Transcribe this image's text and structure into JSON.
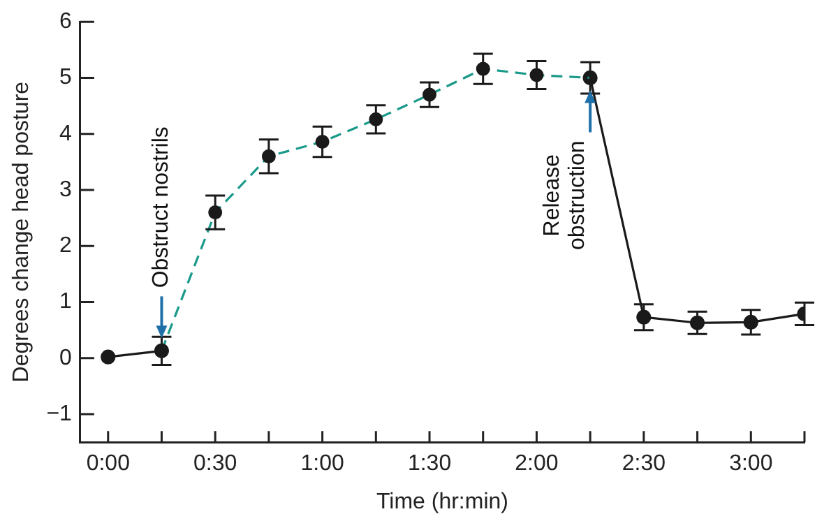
{
  "chart_data": {
    "type": "line",
    "xlabel": "Time (hr:min)",
    "ylabel": "Degrees change head posture",
    "xlim": [
      -0.13,
      3.25
    ],
    "xticks": [
      {
        "value": 0,
        "label": "0:00"
      },
      {
        "value": 0.25,
        "label": null
      },
      {
        "value": 0.5,
        "label": "0:30"
      },
      {
        "value": 0.75,
        "label": null
      },
      {
        "value": 1,
        "label": "1:00"
      },
      {
        "value": 1.25,
        "label": null
      },
      {
        "value": 1.5,
        "label": "1:30"
      },
      {
        "value": 1.75,
        "label": null
      },
      {
        "value": 2,
        "label": "2:00"
      },
      {
        "value": 2.25,
        "label": null
      },
      {
        "value": 2.5,
        "label": "2:30"
      },
      {
        "value": 2.75,
        "label": null
      },
      {
        "value": 3,
        "label": "3:00"
      },
      {
        "value": 3.25,
        "label": null
      }
    ],
    "ylim": [
      -1.5,
      6
    ],
    "yticks": [
      {
        "value": -1,
        "label": "−1"
      },
      0,
      1,
      2,
      3,
      4,
      5,
      6
    ],
    "grid": false,
    "legend": false,
    "series": [
      {
        "type": "scatter",
        "color": "#1a1a1a",
        "marker": "circle",
        "x": [
          0.5,
          0.75,
          1,
          1.25,
          1.5,
          1.75,
          2
        ],
        "values": [
          2.6,
          3.6,
          3.86,
          4.26,
          4.7,
          5.16,
          5.05
        ],
        "errors": [
          0.3,
          0.3,
          0.27,
          0.25,
          0.22,
          0.27,
          0.25
        ]
      },
      {
        "type": "line",
        "color": "#1a1a1a",
        "marker": "circle",
        "line_style": "solid",
        "x": [
          0,
          0.25
        ],
        "values": [
          0.02,
          0.13
        ],
        "errors": [
          null,
          0.25
        ]
      },
      {
        "type": "line",
        "color": "#1a9a8a",
        "marker": "none",
        "line_style": "dashed",
        "x": [
          0.25,
          0.5,
          0.75,
          1,
          1.25,
          1.5,
          1.75,
          2,
          2.25
        ],
        "values": [
          0.13,
          2.6,
          3.6,
          3.86,
          4.26,
          4.7,
          5.16,
          5.05,
          5.0
        ]
      },
      {
        "type": "line",
        "color": "#1a1a1a",
        "marker": "circle",
        "line_style": "solid",
        "x": [
          2.25,
          2.5,
          2.75,
          3,
          3.25
        ],
        "values": [
          5.0,
          0.73,
          0.63,
          0.64,
          0.79
        ],
        "errors": [
          0.28,
          0.23,
          0.2,
          0.22,
          0.2
        ]
      }
    ],
    "annotations": [
      {
        "text": "Obstruct nostrils",
        "x": 0.25,
        "y": 0.13
      },
      {
        "text": "Release\nobstruction",
        "x": 2.25,
        "y": 5.0
      }
    ]
  }
}
